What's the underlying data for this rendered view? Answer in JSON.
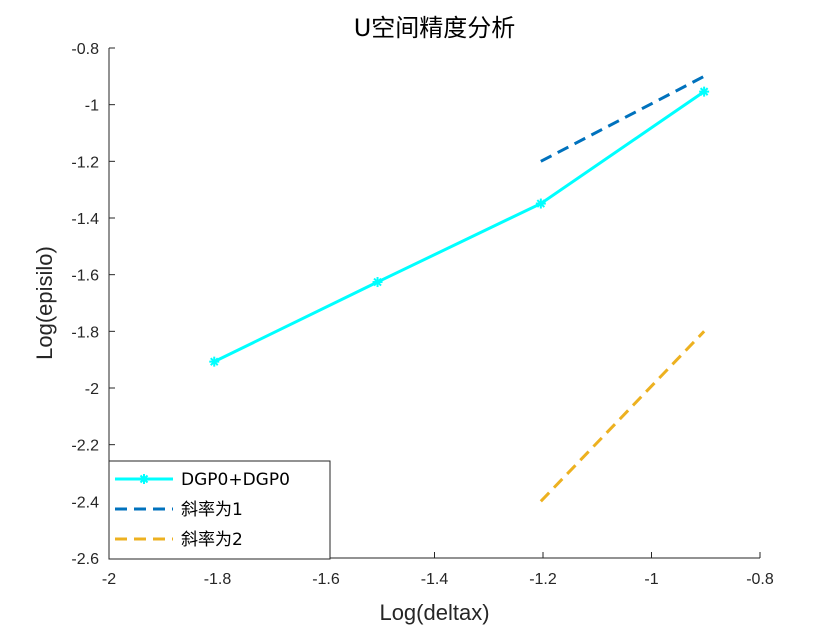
{
  "chart_data": {
    "type": "line",
    "title": "U空间精度分析",
    "xlabel": "Log(deltax)",
    "ylabel": "Log(episilo)",
    "xlim": [
      -2,
      -0.8
    ],
    "ylim": [
      -2.6,
      -0.8
    ],
    "xticks": [
      -2,
      -1.8,
      -1.6,
      -1.4,
      -1.2,
      -1,
      -0.8
    ],
    "yticks": [
      -2.6,
      -2.4,
      -2.2,
      -2,
      -1.8,
      -1.6,
      -1.4,
      -1.2,
      -1,
      -0.8
    ],
    "grid": false,
    "legend_position": "bottom-left",
    "series": [
      {
        "name": "DGP0+DGP0",
        "color": "#00ffff",
        "line_style": "solid",
        "marker": "asterisk",
        "x": [
          -1.806,
          -1.505,
          -1.204,
          -0.903
        ],
        "y": [
          -1.907,
          -1.626,
          -1.349,
          -0.954
        ]
      },
      {
        "name": "斜率为1",
        "color": "#0072bd",
        "line_style": "dashed",
        "marker": "none",
        "x": [
          -1.204,
          -0.903
        ],
        "y": [
          -1.2,
          -0.9
        ]
      },
      {
        "name": "斜率为2",
        "color": "#edb120",
        "line_style": "dashed",
        "marker": "none",
        "x": [
          -1.204,
          -0.903
        ],
        "y": [
          -2.4,
          -1.8
        ]
      }
    ]
  }
}
